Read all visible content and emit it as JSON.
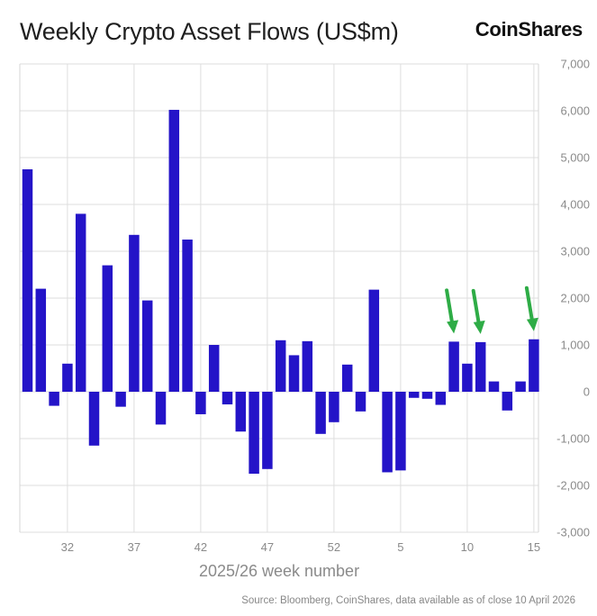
{
  "header": {
    "title": "Weekly Crypto Asset Flows (US$m)",
    "brand": "CoinShares"
  },
  "footer": {
    "source": "Source: Bloomberg, CoinShares, data available as of close 10 April 2026"
  },
  "chart_data": {
    "type": "bar",
    "title": "Weekly Crypto Asset Flows (US$m)",
    "xlabel": "2025/26 week number",
    "ylabel": "",
    "ylim": [
      -3000,
      7000
    ],
    "yticks": [
      7000,
      6000,
      5000,
      4000,
      3000,
      2000,
      1000,
      0,
      -1000,
      -2000,
      -3000
    ],
    "ytick_labels": [
      "7,000",
      "6,000",
      "5,000",
      "4,000",
      "3,000",
      "2,000",
      "1,000",
      "0",
      "-1,000",
      "-2,000",
      "-3,000"
    ],
    "categories": [
      "29",
      "30",
      "31",
      "32",
      "33",
      "34",
      "35",
      "36",
      "37",
      "38",
      "39",
      "40",
      "41",
      "42",
      "43",
      "44",
      "45",
      "46",
      "47",
      "48",
      "49",
      "50",
      "51",
      "52",
      "1",
      "2",
      "3",
      "4",
      "5",
      "6",
      "7",
      "8",
      "9",
      "10",
      "11",
      "12",
      "13",
      "14",
      "15"
    ],
    "values": [
      4750,
      2200,
      -300,
      600,
      3800,
      -1150,
      2700,
      -320,
      3350,
      1950,
      -700,
      6020,
      3250,
      -480,
      1000,
      -270,
      -850,
      -1750,
      -1650,
      1100,
      780,
      1080,
      -900,
      -650,
      580,
      -420,
      2180,
      -1720,
      -1680,
      -130,
      -150,
      -280,
      1070,
      600,
      1060,
      220,
      -400,
      220,
      1120
    ],
    "xtick_labels": [
      "32",
      "37",
      "42",
      "47",
      "52",
      "5",
      "10",
      "15"
    ],
    "bar_color": "#2414c8",
    "annotations": [
      {
        "type": "arrow",
        "category": "9",
        "color": "#2eac46"
      },
      {
        "type": "arrow",
        "category": "11",
        "color": "#2eac46"
      },
      {
        "type": "arrow",
        "category": "15",
        "color": "#2eac46"
      }
    ]
  }
}
